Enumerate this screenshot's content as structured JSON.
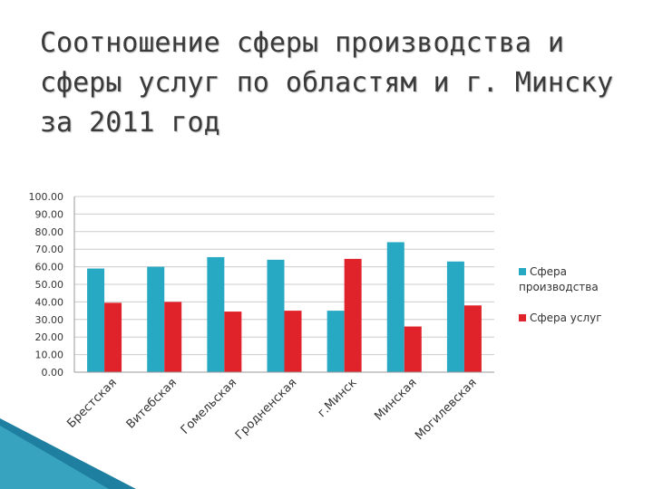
{
  "slide": {
    "title": "Соотношение сферы производства и сферы услуг по областям и г. Минску за 2011 год"
  },
  "colors": {
    "series_production": "#27A9C3",
    "series_services": "#E0232B",
    "gridline": "#cccccc",
    "accent_dark": "#1E7FA0",
    "accent_light": "#4FC1D9"
  },
  "chart_data": {
    "type": "bar",
    "title": "",
    "xlabel": "",
    "ylabel": "",
    "ylim": [
      0,
      100
    ],
    "yticks": [
      "0.00",
      "10.00",
      "20.00",
      "30.00",
      "40.00",
      "50.00",
      "60.00",
      "70.00",
      "80.00",
      "90.00",
      "100.00"
    ],
    "grid": true,
    "legend_position": "right",
    "categories": [
      "Брестская",
      "Витебская",
      "Гомельская",
      "Гродненская",
      "г.Минск",
      "Минская",
      "Могилевская"
    ],
    "series": [
      {
        "name": "Сфера производства",
        "values": [
          59,
          60,
          65.5,
          64,
          35,
          74,
          63
        ]
      },
      {
        "name": "Сфера услуг",
        "values": [
          39.5,
          40,
          34.5,
          35,
          64.5,
          26,
          38
        ]
      }
    ]
  }
}
